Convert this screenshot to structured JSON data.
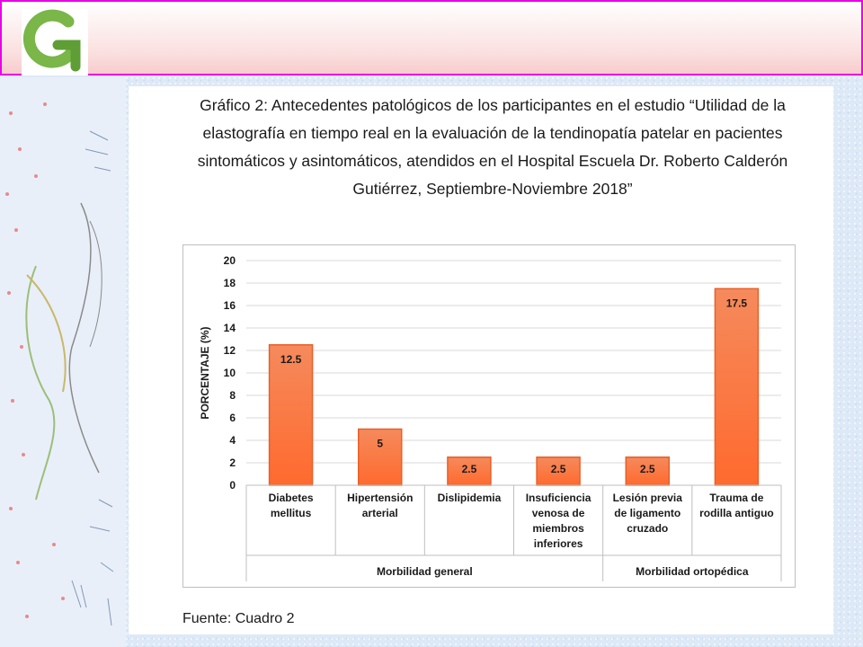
{
  "header": {
    "logo_icon": "green-g-logo-icon"
  },
  "page": {
    "title": "Gráfico 2: Antecedentes patológicos de los participantes en el estudio “Utilidad de la elastografía en tiempo real en la evaluación de la tendinopatía patelar en pacientes sintomáticos y asintomáticos, atendidos en el Hospital Escuela Dr. Roberto Calderón Gutiérrez, Septiembre-Noviembre 2018”",
    "source": "Fuente: Cuadro 2"
  },
  "colors": {
    "bar_top": "#f58a5c",
    "bar_bottom": "#ff6a2e",
    "bar_stroke": "#e8602a",
    "frame": "#e800e8",
    "grid": "#d9d9d9"
  },
  "chart_data": {
    "type": "bar",
    "title": "",
    "ylabel": "PORCENTAJE (%)",
    "xlabel": "",
    "ylim": [
      0,
      20
    ],
    "yticks": [
      0,
      2,
      4,
      6,
      8,
      10,
      12,
      14,
      16,
      18,
      20
    ],
    "grid": true,
    "categories": [
      [
        "Diabetes",
        "mellitus"
      ],
      [
        "Hipertensión",
        "arterial"
      ],
      [
        "Dislipidemia"
      ],
      [
        "Insuficiencia",
        "venosa de",
        "miembros",
        "inferiores"
      ],
      [
        "Lesión previa",
        "de ligamento",
        "cruzado"
      ],
      [
        "Trauma de",
        "rodilla antiguo"
      ]
    ],
    "values": [
      12.5,
      5,
      2.5,
      2.5,
      2.5,
      17.5
    ],
    "data_labels": [
      "12.5",
      "5",
      "2.5",
      "2.5",
      "2.5",
      "17.5"
    ],
    "groups": [
      {
        "label": "Morbilidad general",
        "span": [
          0,
          3
        ]
      },
      {
        "label": "Morbilidad ortopédica",
        "span": [
          4,
          5
        ]
      }
    ]
  }
}
